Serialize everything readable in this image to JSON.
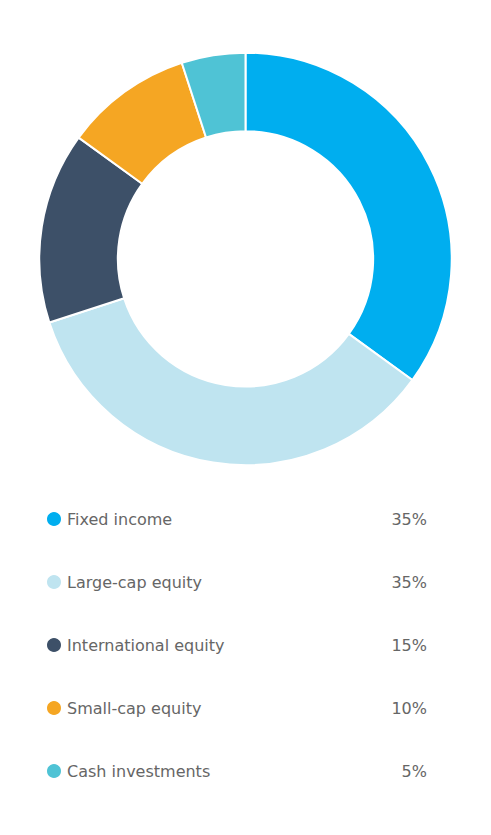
{
  "chart_data": {
    "type": "pie",
    "categories": [
      "Fixed income",
      "Large-cap equity",
      "International equity",
      "Small-cap equity",
      "Cash investments"
    ],
    "values": [
      35,
      35,
      15,
      10,
      5
    ],
    "value_labels": [
      "35%",
      "35%",
      "15%",
      "10%",
      "5%"
    ],
    "colors": [
      "#00AEEF",
      "#BFE4F0",
      "#3D5068",
      "#F5A623",
      "#4FC3D5"
    ],
    "legend": "bottom"
  }
}
